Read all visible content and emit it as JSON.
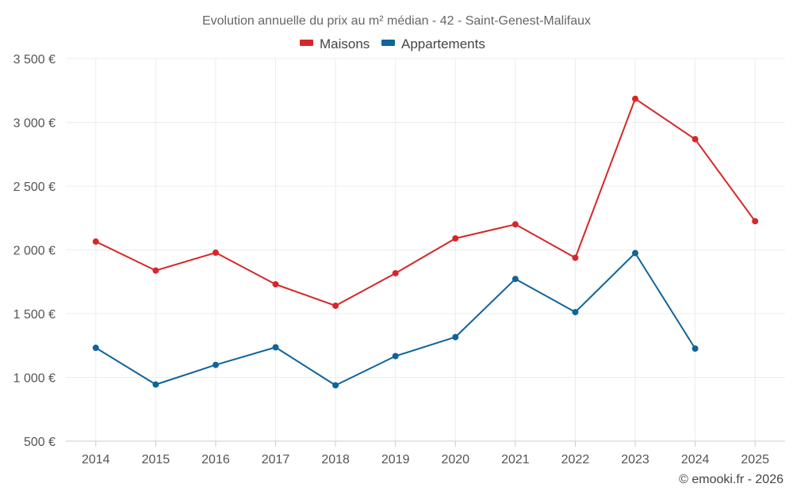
{
  "chart_data": {
    "type": "line",
    "title": "Evolution annuelle du prix au m² médian - 42 - Saint-Genest-Malifaux",
    "categories": [
      "2014",
      "2015",
      "2016",
      "2017",
      "2018",
      "2019",
      "2020",
      "2021",
      "2022",
      "2023",
      "2024",
      "2025"
    ],
    "series": [
      {
        "name": "Maisons",
        "color": "#d62728",
        "values": [
          2065,
          1838,
          1978,
          1730,
          1562,
          1817,
          2090,
          2200,
          1938,
          3185,
          2868,
          2225
        ]
      },
      {
        "name": "Appartements",
        "color": "#0f6499",
        "values": [
          1232,
          944,
          1098,
          1236,
          938,
          1167,
          1316,
          1772,
          1512,
          1975,
          1226,
          null
        ]
      }
    ],
    "ylim": [
      500,
      3500
    ],
    "yticks": [
      500,
      1000,
      1500,
      2000,
      2500,
      3000,
      3500
    ],
    "ytick_labels": [
      "500 €",
      "1 000 €",
      "1 500 €",
      "2 000 €",
      "2 500 €",
      "3 000 €",
      "3 500 €"
    ],
    "xlabel": "",
    "ylabel": "",
    "grid": true,
    "legend_position": "top-center"
  },
  "credit": "© emooki.fr - 2026"
}
